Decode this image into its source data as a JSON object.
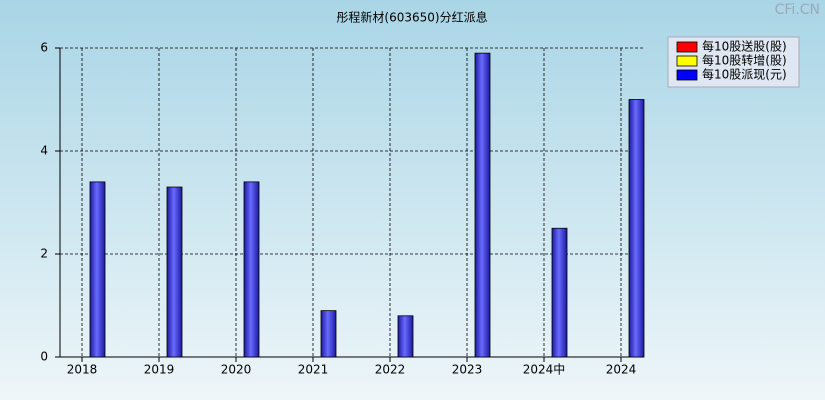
{
  "chart_data": {
    "type": "bar",
    "title": "彤程新材(603650)分红派息",
    "watermark": "CFi.CN",
    "categories": [
      "2018",
      "2019",
      "2020",
      "2021",
      "2022",
      "2023",
      "2024中",
      "2024"
    ],
    "series": [
      {
        "name": "每10股送股(股)",
        "color": "#ff0000",
        "values": [
          null,
          null,
          null,
          null,
          null,
          null,
          null,
          null
        ]
      },
      {
        "name": "每10股转增(股)",
        "color": "#ffff00",
        "values": [
          null,
          null,
          null,
          null,
          null,
          null,
          null,
          null
        ]
      },
      {
        "name": "每10股派现(元)",
        "color": "#0000ff",
        "values": [
          3.4,
          3.3,
          3.4,
          0.9,
          0.8,
          5.9,
          2.5,
          5.0
        ]
      }
    ],
    "ylim": [
      0,
      6
    ],
    "yticks": [
      0,
      2,
      4,
      6
    ],
    "grid": true
  }
}
